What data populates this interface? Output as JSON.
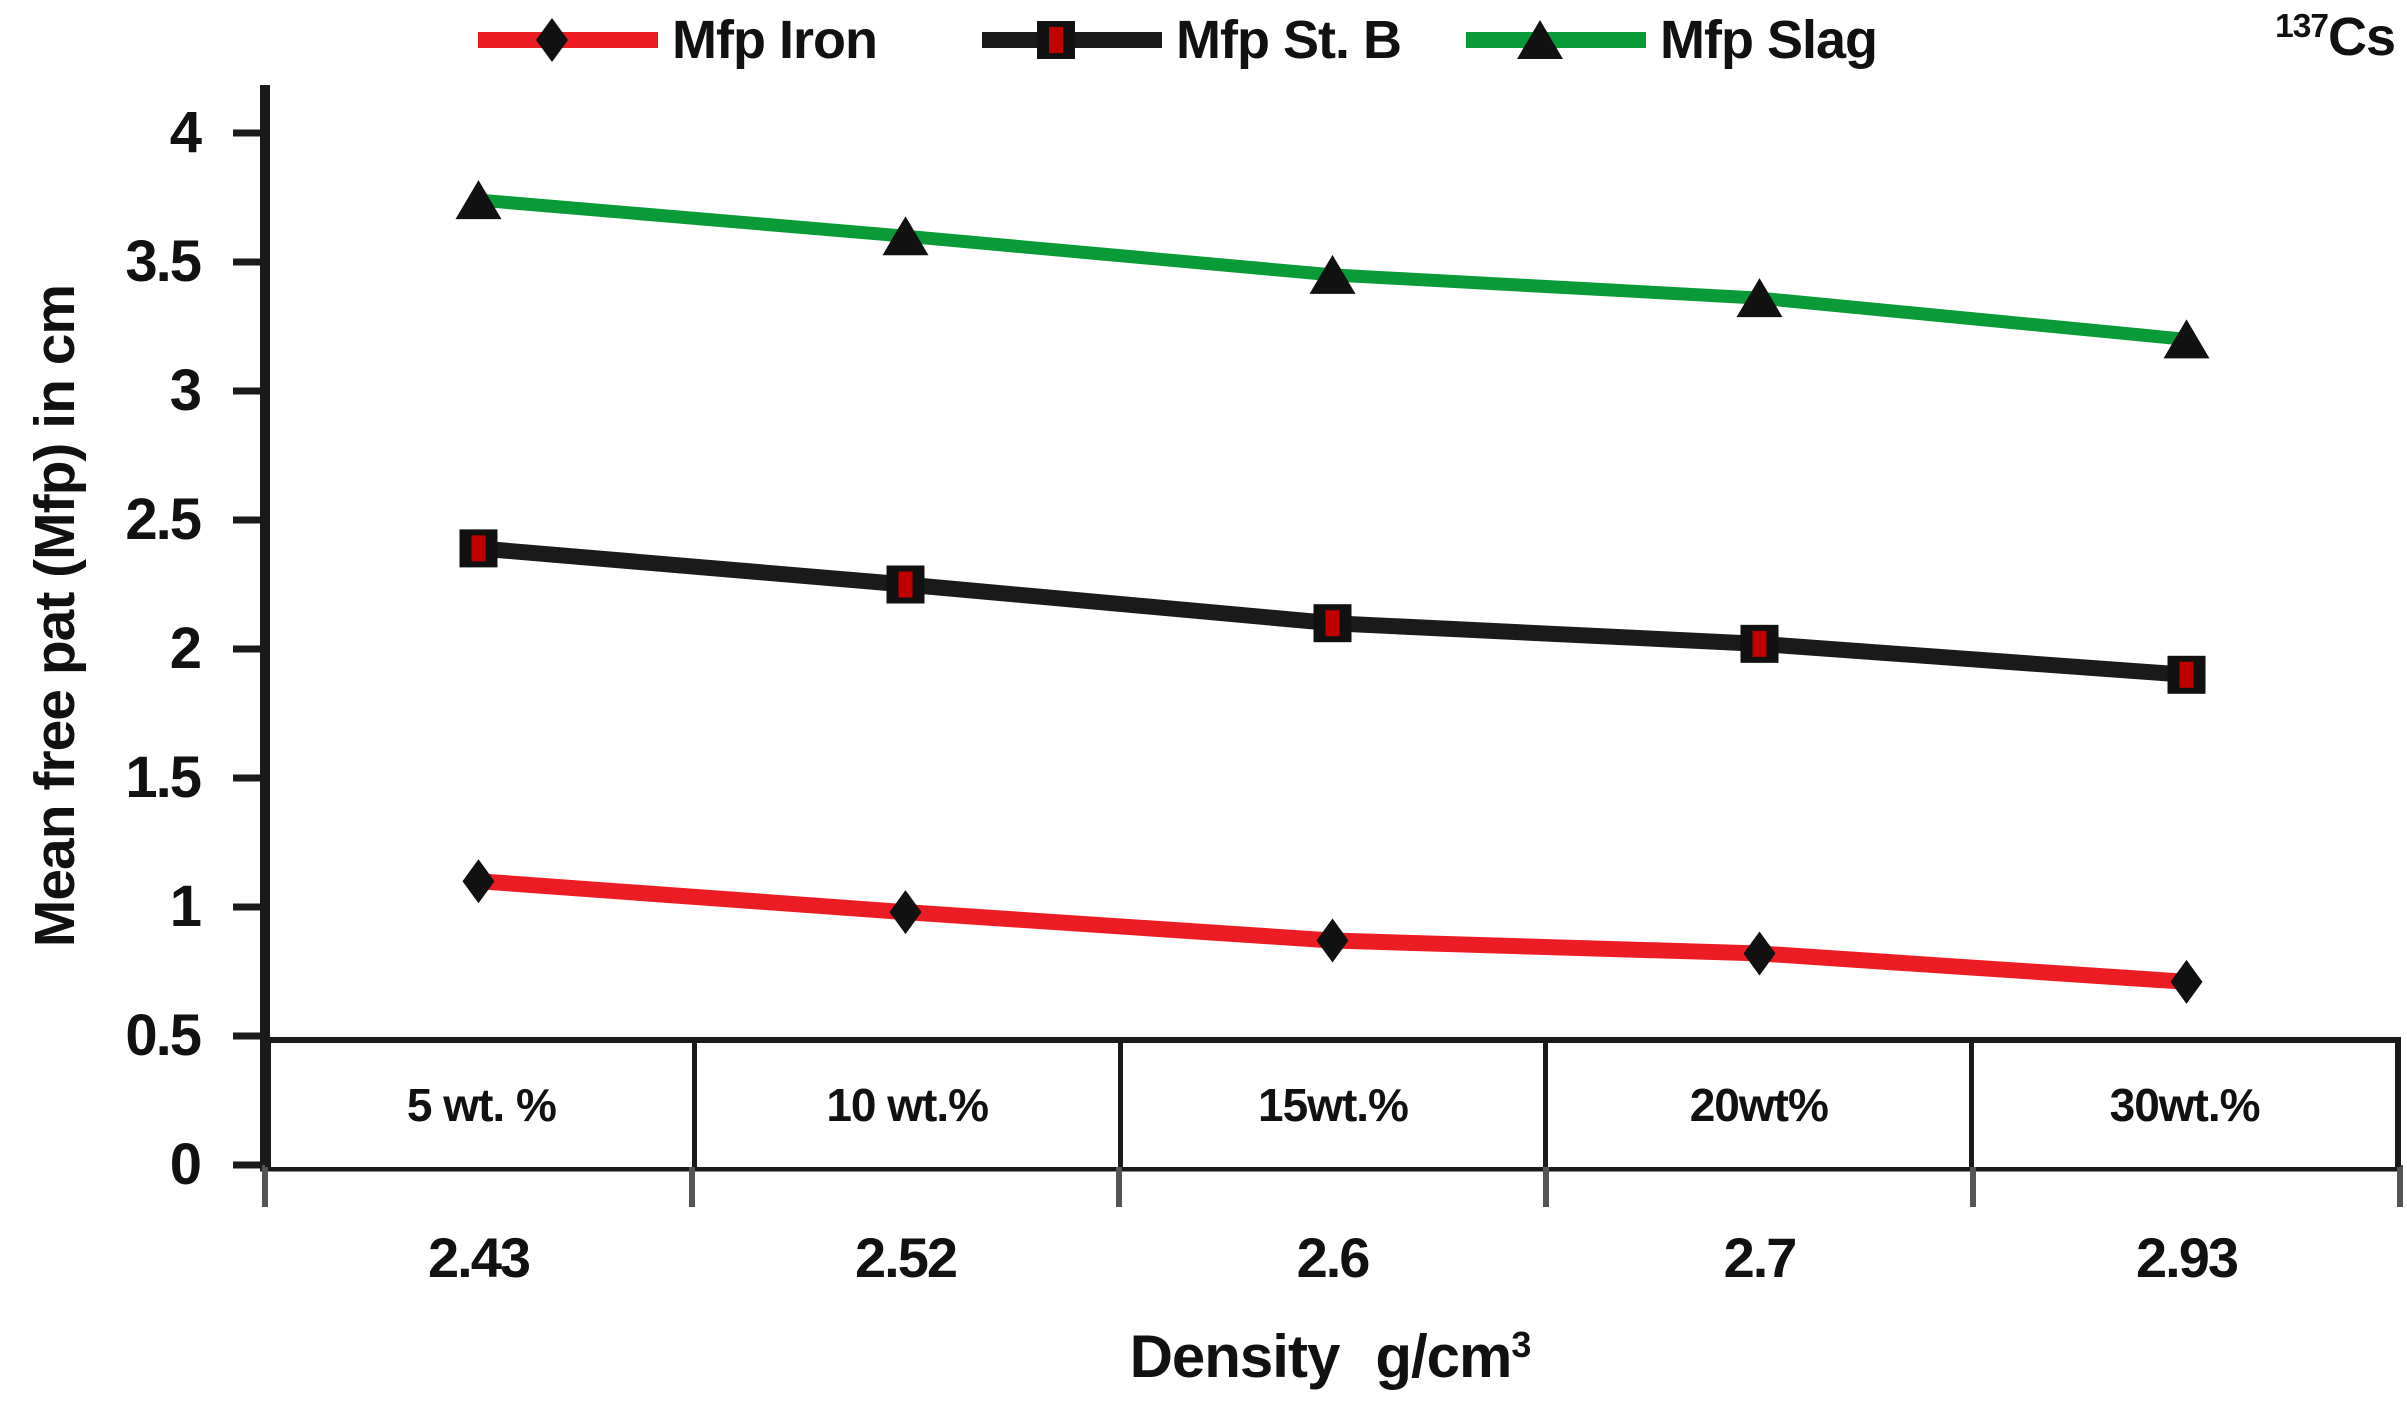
{
  "isotope": {
    "superscript": "137",
    "symbol": "Cs"
  },
  "legend": {
    "items": [
      {
        "label": "Mfp Iron"
      },
      {
        "label": "Mfp St. B"
      },
      {
        "label": "Mfp Slag"
      }
    ]
  },
  "chart_data": {
    "type": "line",
    "title": "",
    "annotation": "137Cs",
    "xlabel_main": "Density",
    "xlabel_unit": "g/cm",
    "xlabel_unit_sup": "3",
    "ylabel": "Mean free pat (Mfp) in cm",
    "x": [
      2.43,
      2.52,
      2.6,
      2.7,
      2.93
    ],
    "x_tick_labels": [
      "2.43",
      "2.52",
      "2.6",
      "2.7",
      "2.93"
    ],
    "category_boxes": [
      "5 wt. %",
      "10 wt.%",
      "15wt.%",
      "20wt%",
      "30wt.%"
    ],
    "ylim": [
      0,
      4
    ],
    "y_tick_labels": [
      "4",
      "3.5",
      "3",
      "2.5",
      "2",
      "1.5",
      "1",
      "0.5",
      "0"
    ],
    "grid": false,
    "legend_position": "top",
    "series": [
      {
        "name": "Mfp Iron",
        "color": "#EC1C24",
        "marker": "diamond",
        "marker_color": "#111111",
        "values": [
          1.1,
          0.98,
          0.87,
          0.82,
          0.71
        ]
      },
      {
        "name": "Mfp St. B",
        "color": "#1A1A1A",
        "marker": "square",
        "marker_color": "#111111",
        "marker_inner": "#C00000",
        "values": [
          2.39,
          2.25,
          2.1,
          2.02,
          1.9
        ]
      },
      {
        "name": "Mfp Slag",
        "color": "#0A9A38",
        "marker": "triangle",
        "marker_color": "#111111",
        "values": [
          3.74,
          3.6,
          3.45,
          3.36,
          3.2
        ]
      }
    ]
  }
}
